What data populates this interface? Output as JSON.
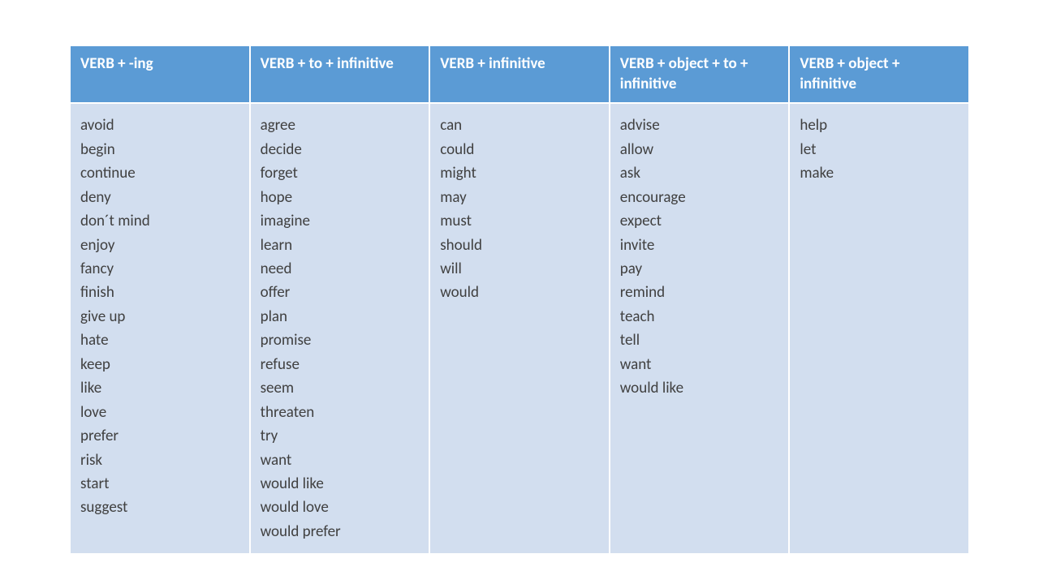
{
  "table": {
    "header_bg": "#5b9bd5",
    "header_color": "#ffffff",
    "cell_bg": "#d2deef",
    "cell_color": "#404040",
    "border_color": "#ffffff",
    "font_family": "Calibri",
    "header_fontsize": 19,
    "cell_fontsize": 19,
    "columns": [
      {
        "header": "VERB + -ing",
        "items": [
          "avoid",
          "begin",
          "continue",
          "deny",
          "don´t mind",
          "enjoy",
          "fancy",
          "finish",
          "give up",
          "hate",
          "keep",
          "like",
          "love",
          "prefer",
          "risk",
          "start",
          "suggest"
        ]
      },
      {
        "header": "VERB + to + infinitive",
        "items": [
          "agree",
          "decide",
          "forget",
          "hope",
          "imagine",
          "learn",
          "need",
          "offer",
          "plan",
          "promise",
          "refuse",
          "seem",
          "threaten",
          "try",
          "want",
          "would like",
          "would love",
          "would prefer"
        ]
      },
      {
        "header": "VERB + infinitive",
        "items": [
          "can",
          "could",
          "might",
          "may",
          "must",
          "should",
          "will",
          "would"
        ]
      },
      {
        "header": "VERB + object + to + infinitive",
        "items": [
          "advise",
          "allow",
          "ask",
          "encourage",
          "expect",
          "invite",
          "pay",
          "remind",
          "teach",
          "tell",
          "want",
          "would like"
        ]
      },
      {
        "header": "VERB + object + infinitive",
        "items": [
          "help",
          "let",
          "make"
        ]
      }
    ]
  }
}
